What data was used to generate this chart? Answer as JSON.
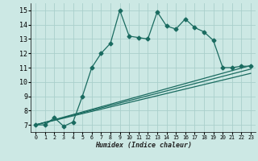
{
  "xlabel": "Humidex (Indice chaleur)",
  "ylabel": "",
  "bg_color": "#cce8e4",
  "grid_color": "#aacfcb",
  "line_color": "#1a6b60",
  "xlim": [
    -0.5,
    23.5
  ],
  "ylim": [
    6.5,
    15.5
  ],
  "xticks": [
    0,
    1,
    2,
    3,
    4,
    5,
    6,
    7,
    8,
    9,
    10,
    11,
    12,
    13,
    14,
    15,
    16,
    17,
    18,
    19,
    20,
    21,
    22,
    23
  ],
  "yticks": [
    7,
    8,
    9,
    10,
    11,
    12,
    13,
    14,
    15
  ],
  "series": [
    {
      "x": [
        0,
        1,
        2,
        3,
        4,
        5,
        6,
        7,
        8,
        9,
        10,
        11,
        12,
        13,
        14,
        15,
        16,
        17,
        18,
        19,
        20,
        21,
        22,
        23
      ],
      "y": [
        7.0,
        7.0,
        7.5,
        6.9,
        7.2,
        9.0,
        11.0,
        12.0,
        12.7,
        15.0,
        13.2,
        13.1,
        13.0,
        14.9,
        13.9,
        13.7,
        14.4,
        13.8,
        13.5,
        12.9,
        11.0,
        11.0,
        11.1,
        11.1
      ],
      "marker": "D",
      "markersize": 2.5,
      "linewidth": 0.9
    },
    {
      "x": [
        0,
        23
      ],
      "y": [
        7.0,
        11.15
      ],
      "marker": null,
      "linewidth": 0.9
    },
    {
      "x": [
        0,
        23
      ],
      "y": [
        7.0,
        10.9
      ],
      "marker": null,
      "linewidth": 0.9
    },
    {
      "x": [
        0,
        23
      ],
      "y": [
        7.0,
        10.6
      ],
      "marker": null,
      "linewidth": 0.9
    }
  ]
}
